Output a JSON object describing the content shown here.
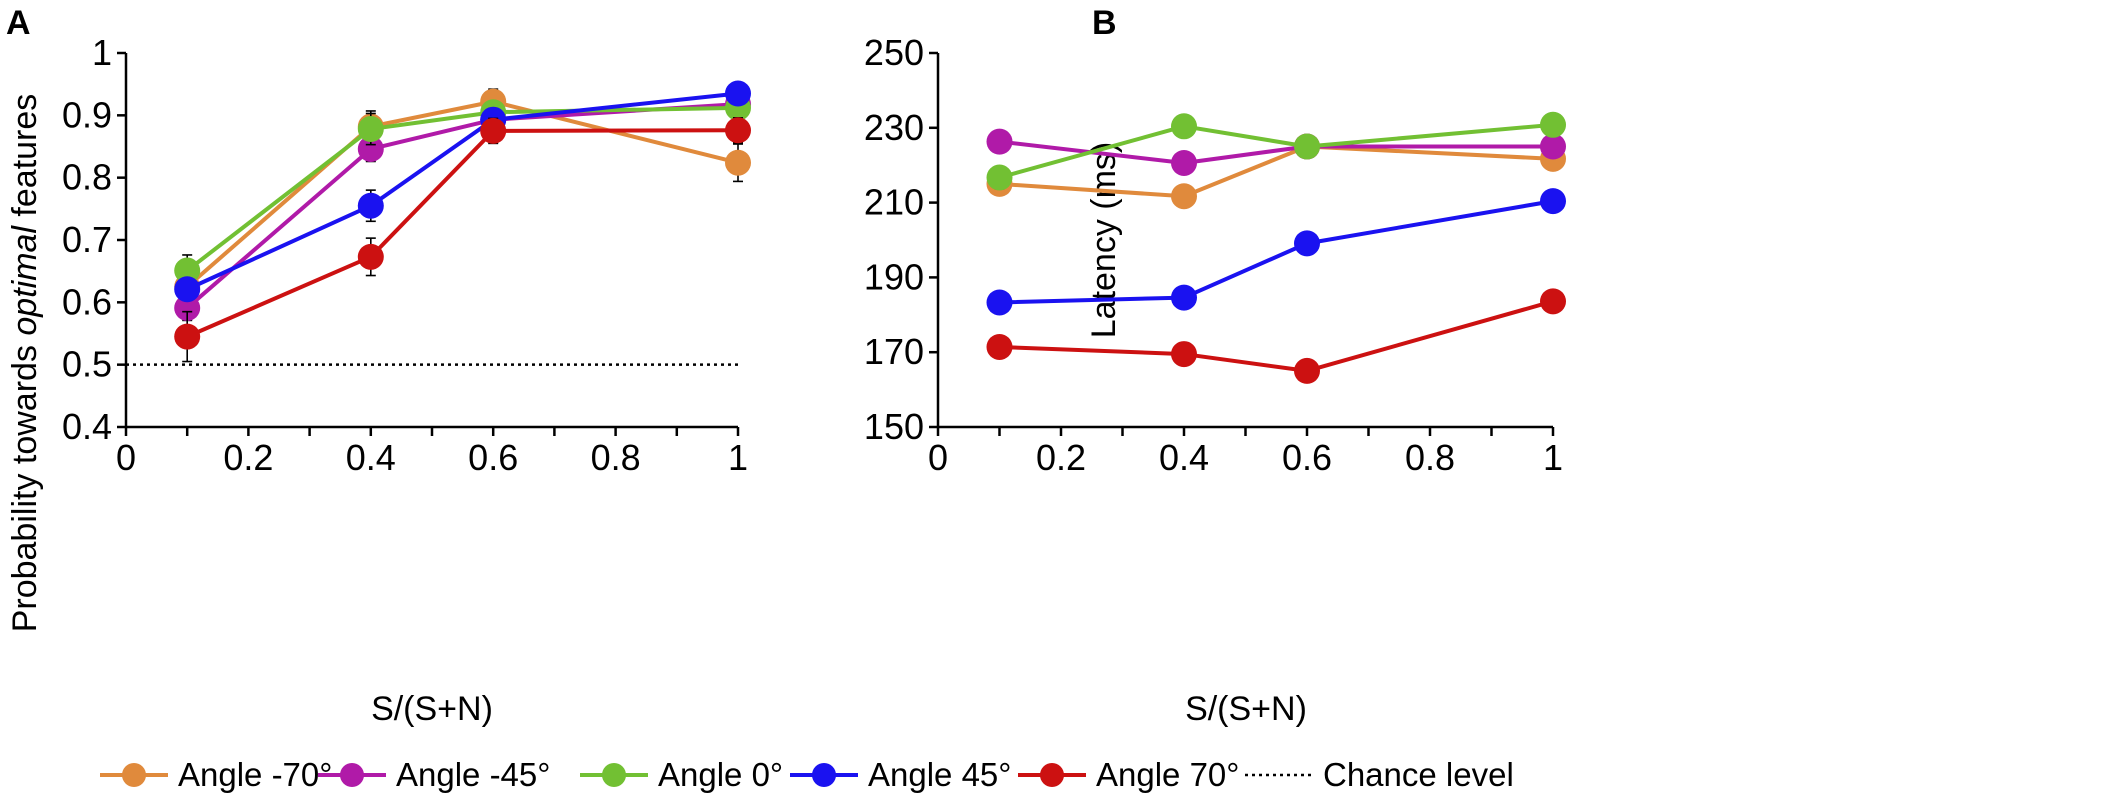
{
  "chart_data": [
    {
      "type": "line",
      "panel_label": "A",
      "title": "",
      "xlabel": "S/(S+N)",
      "ylabel_parts": [
        "Probability towards ",
        "optimal",
        " features"
      ],
      "xlim": [
        0,
        1
      ],
      "ylim": [
        0.4,
        1
      ],
      "xticks": [
        0,
        0.2,
        0.4,
        0.6,
        0.8,
        1
      ],
      "xtick_labels": [
        "0",
        "0.2",
        "0.4",
        "0.6",
        "0.8",
        "1"
      ],
      "yticks": [
        0.4,
        0.5,
        0.6,
        0.7,
        0.8,
        0.9,
        1
      ],
      "ytick_labels": [
        "0.4",
        "0.5",
        "0.6",
        "0.7",
        "0.8",
        "0.9",
        "1"
      ],
      "grid": false,
      "x": [
        0.1,
        0.4,
        0.6,
        1
      ],
      "series": [
        {
          "name": "Angle -70°",
          "color": "#e08a3c",
          "values": [
            0.625,
            0.882,
            0.922,
            0.824
          ],
          "errors": [
            0.015,
            0.025,
            0.02,
            0.03
          ]
        },
        {
          "name": "Angle -45°",
          "color": "#b01aa8",
          "values": [
            0.591,
            0.846,
            0.893,
            0.918
          ],
          "errors": [
            0.02,
            0.02,
            0.015,
            0.015
          ]
        },
        {
          "name": "Angle 0°",
          "color": "#72c033",
          "values": [
            0.651,
            0.878,
            0.905,
            0.912
          ],
          "errors": [
            0.025,
            0.025,
            0.015,
            0.015
          ]
        },
        {
          "name": "Angle 45°",
          "color": "#1a12f0",
          "values": [
            0.621,
            0.755,
            0.893,
            0.935
          ],
          "errors": [
            0.015,
            0.025,
            0.015,
            0.01
          ]
        },
        {
          "name": "Angle 70°",
          "color": "#cc1111",
          "values": [
            0.545,
            0.673,
            0.875,
            0.876
          ],
          "errors": [
            0.04,
            0.03,
            0.02,
            0.02
          ]
        }
      ],
      "reference_line": {
        "name": "Chance level",
        "y": 0.5
      }
    },
    {
      "type": "line",
      "panel_label": "B",
      "title": "",
      "xlabel": "S/(S+N)",
      "ylabel": "Latency (ms)",
      "xlim": [
        0,
        1
      ],
      "ylim": [
        150,
        250
      ],
      "xticks": [
        0,
        0.2,
        0.4,
        0.6,
        0.8,
        1
      ],
      "xtick_labels": [
        "0",
        "0.2",
        "0.4",
        "0.6",
        "0.8",
        "1"
      ],
      "yticks": [
        150,
        170,
        190,
        210,
        230,
        250
      ],
      "ytick_labels": [
        "150",
        "170",
        "190",
        "210",
        "230",
        "250"
      ],
      "grid": false,
      "x": [
        0.1,
        0.4,
        0.6,
        1
      ],
      "series": [
        {
          "name": "Angle -70°",
          "color": "#e08a3c",
          "values": [
            215,
            211.7,
            225,
            221.7
          ],
          "errors": [
            2.5,
            2.5,
            2.5,
            2.5
          ]
        },
        {
          "name": "Angle -45°",
          "color": "#b01aa8",
          "values": [
            226.3,
            220.6,
            225,
            225
          ],
          "errors": [
            2.5,
            2.5,
            2.5,
            2.5
          ]
        },
        {
          "name": "Angle 0°",
          "color": "#72c033",
          "values": [
            216.7,
            230.4,
            225,
            230.8
          ],
          "errors": [
            3,
            2.5,
            2.5,
            2.5
          ]
        },
        {
          "name": "Angle 45°",
          "color": "#1a12f0",
          "values": [
            183.3,
            184.6,
            199.1,
            210.4
          ],
          "errors": [
            2.5,
            2.5,
            2.5,
            2.5
          ]
        },
        {
          "name": "Angle 70°",
          "color": "#cc1111",
          "values": [
            171.4,
            169.5,
            165,
            183.6
          ],
          "errors": [
            2.5,
            2,
            2,
            2.5
          ]
        }
      ]
    }
  ],
  "legend": {
    "position": "bottom",
    "items": [
      {
        "label": "Angle -70°",
        "color": "#e08a3c",
        "style": "line-marker"
      },
      {
        "label": "Angle -45°",
        "color": "#b01aa8",
        "style": "line-marker"
      },
      {
        "label": "Angle 0°",
        "color": "#72c033",
        "style": "line-marker"
      },
      {
        "label": "Angle 45°",
        "color": "#1a12f0",
        "style": "line-marker"
      },
      {
        "label": "Angle 70°",
        "color": "#cc1111",
        "style": "line-marker"
      },
      {
        "label": "Chance level",
        "color": "#000000",
        "style": "dotted"
      }
    ]
  }
}
